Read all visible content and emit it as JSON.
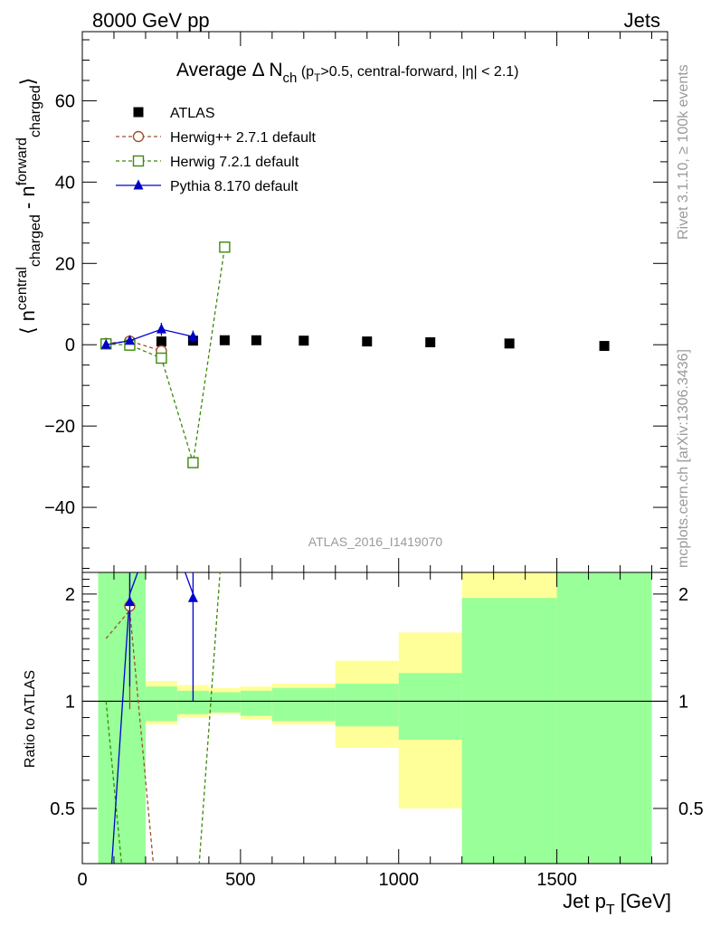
{
  "header": {
    "left": "8000 GeV pp",
    "right": "Jets"
  },
  "title": {
    "main": "Average Δ N",
    "sub": "ch",
    "cond_pre": " (p",
    "cond_sub": "T",
    "cond_post": ">0.5, central-forward, |η| < 2.1)"
  },
  "watermark": "ATLAS_2016_I1419070",
  "side_texts": {
    "rivet": "Rivet 3.1.10, ≥ 100k events",
    "mcplots": "mcplots.cern.ch [arXiv:1306.3436]"
  },
  "ylabel_main": {
    "p1": "⟨ n",
    "p2": "central",
    "p3": "charged",
    "p4": " - n",
    "p5": "forward",
    "p6": "charged",
    "p7": "⟩"
  },
  "ylabel_ratio": "Ratio to ATLAS",
  "xlabel": {
    "main": "Jet p",
    "sub": "T",
    "unit": " [GeV]"
  },
  "colors": {
    "data": "#000000",
    "herwigpp": "#a0522d",
    "herwig7": "#3a8a0a",
    "pythia": "#0000cc",
    "band_inner": "#99ff99",
    "band_outer": "#ffff99"
  },
  "legend": [
    {
      "label": "ATLAS",
      "marker": "square-filled",
      "color": "#000000"
    },
    {
      "label": "Herwig++ 2.7.1 default",
      "marker": "circle-open",
      "color": "#a0522d"
    },
    {
      "label": "Herwig 7.2.1 default",
      "marker": "square-open",
      "color": "#3a8a0a"
    },
    {
      "label": "Pythia 8.170 default",
      "marker": "triangle-filled",
      "color": "#0000cc"
    }
  ],
  "chart_data": {
    "type": "scatter",
    "xlabel": "Jet pT [GeV]",
    "ylabel": "⟨ n(central,charged) - n(forward,charged) ⟩",
    "xlim": [
      0,
      1850
    ],
    "ylim": [
      -56,
      77
    ],
    "xticks": [
      0,
      500,
      1000,
      1500
    ],
    "yticks": [
      -40,
      -20,
      0,
      20,
      40,
      60
    ],
    "legend_position": "top-left",
    "bins": [
      [
        50,
        100
      ],
      [
        100,
        200
      ],
      [
        200,
        300
      ],
      [
        300,
        400
      ],
      [
        400,
        500
      ],
      [
        500,
        600
      ],
      [
        600,
        800
      ],
      [
        800,
        1000
      ],
      [
        1000,
        1200
      ],
      [
        1200,
        1500
      ],
      [
        1500,
        1800
      ]
    ],
    "series": [
      {
        "name": "ATLAS",
        "x": [
          75,
          150,
          250,
          350,
          450,
          550,
          700,
          900,
          1100,
          1350,
          1650
        ],
        "y": [
          0.2,
          0.5,
          0.8,
          1.0,
          1.1,
          1.1,
          1.0,
          0.8,
          0.6,
          0.3,
          -0.3
        ]
      },
      {
        "name": "Herwig++ 2.7.1 default",
        "x": [
          75,
          150,
          250
        ],
        "y": [
          0.3,
          0.9,
          -1.5
        ],
        "yerr": [
          0.3,
          0.5,
          1.0
        ]
      },
      {
        "name": "Herwig 7.2.1 default",
        "x": [
          75,
          150,
          250,
          350,
          450
        ],
        "y": [
          0.2,
          -0.1,
          -3.3,
          -29.0,
          24.0
        ],
        "yerr": [
          0.3,
          0.5,
          1.0,
          1.0,
          1.0
        ]
      },
      {
        "name": "Pythia 8.170 default",
        "x": [
          75,
          150,
          250,
          350
        ],
        "y": [
          0.0,
          1.0,
          3.8,
          2.0
        ],
        "yerr": [
          0.5,
          0.6,
          1.6,
          1.5
        ]
      }
    ],
    "ratio": {
      "ylabel": "Ratio to ATLAS",
      "ylim": [
        0.35,
        2.3
      ],
      "yticks": [
        0.5,
        1,
        2
      ],
      "band_inner": [
        [
          0.35,
          2.3
        ],
        [
          0.35,
          2.3
        ],
        [
          0.88,
          1.1
        ],
        [
          0.92,
          1.07
        ],
        [
          0.93,
          1.06
        ],
        [
          0.91,
          1.07
        ],
        [
          0.88,
          1.09
        ],
        [
          0.85,
          1.12
        ],
        [
          0.78,
          1.2
        ],
        [
          0.35,
          1.95
        ],
        [
          0.35,
          2.3
        ]
      ],
      "band_outer": [
        [
          0.35,
          2.3
        ],
        [
          0.7,
          1.38
        ],
        [
          0.86,
          1.14
        ],
        [
          0.9,
          1.11
        ],
        [
          0.92,
          1.09
        ],
        [
          0.89,
          1.1
        ],
        [
          0.86,
          1.12
        ],
        [
          0.74,
          1.3
        ],
        [
          0.5,
          1.56
        ],
        [
          0.35,
          2.3
        ],
        [
          0.35,
          2.3
        ]
      ],
      "series": [
        {
          "name": "Herwig++ 2.7.1 default",
          "x": [
            150
          ],
          "y": [
            1.85
          ],
          "yerr_low": [
            0.9
          ],
          "yerr_high": [
            0.5
          ]
        },
        {
          "name": "Pythia 8.170 default",
          "x": [
            150,
            350
          ],
          "y": [
            1.9,
            1.95
          ],
          "yerr_low": [
            0.8,
            0.95
          ],
          "yerr_high": [
            0.5,
            0.4
          ]
        }
      ]
    }
  }
}
